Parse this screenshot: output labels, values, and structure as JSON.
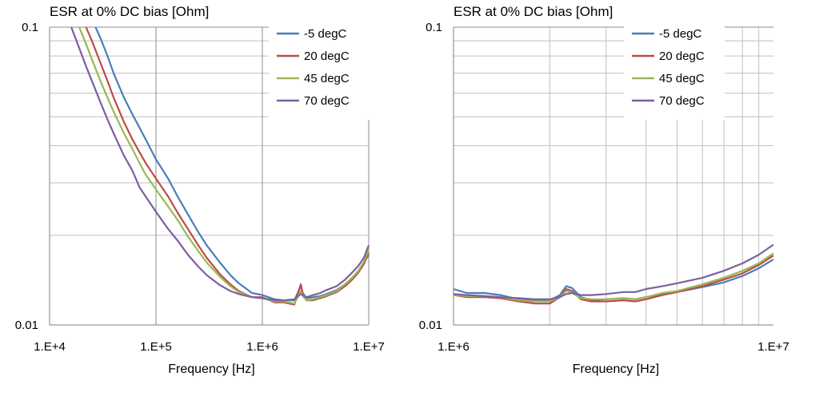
{
  "chart_data": [
    {
      "type": "line",
      "title": "ESR at 0% DC bias [Ohm]",
      "xlabel": "Frequency [Hz]",
      "ylabel": "",
      "xscale": "log",
      "yscale": "log",
      "xlim": [
        10000,
        10000000
      ],
      "ylim": [
        0.01,
        0.1
      ],
      "xticks": [
        10000,
        100000,
        1000000,
        10000000
      ],
      "xtick_labels": [
        "1.E+4",
        "1.E+5",
        "1.E+6",
        "1.E+7"
      ],
      "yticks": [
        0.01,
        0.1
      ],
      "ytick_labels": [
        "0.01",
        "0.1"
      ],
      "grid": true,
      "legend_position": "top-right",
      "series": [
        {
          "name": "-5 degC",
          "color": "#4a7ebb",
          "x": [
            27000,
            30000,
            35000,
            40000,
            50000,
            60000,
            70000,
            80000,
            100000,
            130000,
            160000,
            200000,
            250000,
            300000,
            400000,
            500000,
            600000,
            800000,
            1000000,
            1300000,
            1600000,
            2000000,
            2300000,
            2400000,
            2600000,
            3000000,
            3500000,
            4000000,
            5000000,
            6000000,
            7000000,
            8000000,
            9000000,
            10000000
          ],
          "y": [
            0.1,
            0.092,
            0.08,
            0.07,
            0.058,
            0.051,
            0.046,
            0.042,
            0.036,
            0.031,
            0.027,
            0.0235,
            0.0205,
            0.0185,
            0.0162,
            0.0147,
            0.0138,
            0.0128,
            0.0126,
            0.0122,
            0.0121,
            0.0121,
            0.0135,
            0.0128,
            0.0123,
            0.0124,
            0.0125,
            0.0127,
            0.0131,
            0.0137,
            0.0144,
            0.0152,
            0.0162,
            0.0172
          ]
        },
        {
          "name": "20 degC",
          "color": "#be4b48",
          "x": [
            22000,
            25000,
            30000,
            35000,
            40000,
            50000,
            60000,
            70000,
            80000,
            100000,
            130000,
            160000,
            200000,
            250000,
            300000,
            400000,
            500000,
            600000,
            800000,
            1000000,
            1300000,
            1600000,
            2000000,
            2300000,
            2400000,
            2600000,
            3000000,
            3500000,
            4000000,
            5000000,
            6000000,
            7000000,
            8000000,
            9000000,
            10000000
          ],
          "y": [
            0.1,
            0.09,
            0.076,
            0.066,
            0.058,
            0.048,
            0.042,
            0.038,
            0.035,
            0.031,
            0.027,
            0.0238,
            0.021,
            0.0185,
            0.0168,
            0.0148,
            0.0137,
            0.013,
            0.0124,
            0.0124,
            0.0119,
            0.0119,
            0.0117,
            0.0137,
            0.0127,
            0.0121,
            0.0121,
            0.0123,
            0.0125,
            0.0129,
            0.0135,
            0.0142,
            0.015,
            0.016,
            0.0175
          ]
        },
        {
          "name": "45 degC",
          "color": "#98b954",
          "x": [
            19000,
            22000,
            25000,
            30000,
            35000,
            40000,
            50000,
            60000,
            70000,
            80000,
            100000,
            130000,
            160000,
            200000,
            250000,
            300000,
            400000,
            500000,
            600000,
            800000,
            1000000,
            1300000,
            1600000,
            2000000,
            2300000,
            2400000,
            2600000,
            3000000,
            3500000,
            4000000,
            5000000,
            6000000,
            7000000,
            8000000,
            9000000,
            10000000
          ],
          "y": [
            0.1,
            0.088,
            0.078,
            0.066,
            0.058,
            0.052,
            0.044,
            0.039,
            0.035,
            0.032,
            0.0285,
            0.025,
            0.0225,
            0.0198,
            0.0177,
            0.0162,
            0.0145,
            0.0135,
            0.0129,
            0.0124,
            0.0123,
            0.012,
            0.012,
            0.0118,
            0.013,
            0.0125,
            0.0121,
            0.0122,
            0.0124,
            0.0126,
            0.013,
            0.0137,
            0.0144,
            0.0152,
            0.0163,
            0.0178
          ]
        },
        {
          "name": "70 degC",
          "color": "#7d5fa0",
          "x": [
            16000,
            19000,
            22000,
            25000,
            30000,
            35000,
            40000,
            50000,
            60000,
            70000,
            80000,
            100000,
            130000,
            160000,
            200000,
            250000,
            300000,
            400000,
            500000,
            600000,
            800000,
            1000000,
            1300000,
            1600000,
            2000000,
            2300000,
            2400000,
            2600000,
            3000000,
            3500000,
            4000000,
            5000000,
            6000000,
            7000000,
            8000000,
            9000000,
            10000000
          ],
          "y": [
            0.1,
            0.085,
            0.074,
            0.066,
            0.056,
            0.049,
            0.044,
            0.037,
            0.033,
            0.029,
            0.027,
            0.024,
            0.021,
            0.0192,
            0.0172,
            0.0157,
            0.0147,
            0.0136,
            0.013,
            0.0127,
            0.0124,
            0.0123,
            0.0121,
            0.0121,
            0.0122,
            0.0127,
            0.0126,
            0.0124,
            0.0126,
            0.0128,
            0.0131,
            0.0135,
            0.0142,
            0.015,
            0.0158,
            0.0168,
            0.0185
          ]
        }
      ]
    },
    {
      "type": "line",
      "title": "ESR at 0% DC bias [Ohm]",
      "xlabel": "Frequency [Hz]",
      "ylabel": "",
      "xscale": "log",
      "yscale": "log",
      "xlim": [
        1000000,
        10000000
      ],
      "ylim": [
        0.01,
        0.1
      ],
      "xticks": [
        1000000,
        10000000
      ],
      "xtick_labels": [
        "1.E+6",
        "1.E+7"
      ],
      "yticks": [
        0.01,
        0.1
      ],
      "ytick_labels": [
        "0.01",
        "0.1"
      ],
      "grid": true,
      "legend_position": "top-right",
      "series": [
        {
          "name": "-5 degC",
          "color": "#4a7ebb",
          "x": [
            1000000,
            1100000,
            1250000,
            1400000,
            1600000,
            1800000,
            2000000,
            2150000,
            2250000,
            2350000,
            2500000,
            2700000,
            3000000,
            3400000,
            3700000,
            4000000,
            4500000,
            5000000,
            6000000,
            7000000,
            8000000,
            9000000,
            10000000
          ],
          "y": [
            0.0132,
            0.0128,
            0.0128,
            0.0126,
            0.0122,
            0.0121,
            0.0121,
            0.0126,
            0.0135,
            0.0133,
            0.0124,
            0.0121,
            0.0122,
            0.0123,
            0.0122,
            0.0124,
            0.0127,
            0.0129,
            0.0134,
            0.0139,
            0.0146,
            0.0155,
            0.0166
          ]
        },
        {
          "name": "20 degC",
          "color": "#be4b48",
          "x": [
            1000000,
            1100000,
            1250000,
            1400000,
            1600000,
            1800000,
            2000000,
            2150000,
            2250000,
            2350000,
            2500000,
            2700000,
            3000000,
            3400000,
            3700000,
            4000000,
            4500000,
            5000000,
            6000000,
            7000000,
            8000000,
            9000000,
            10000000
          ],
          "y": [
            0.0126,
            0.0124,
            0.0124,
            0.0123,
            0.012,
            0.0118,
            0.0118,
            0.0124,
            0.0132,
            0.013,
            0.0122,
            0.012,
            0.012,
            0.0121,
            0.012,
            0.0122,
            0.0126,
            0.0129,
            0.0135,
            0.0142,
            0.0149,
            0.0159,
            0.0171
          ]
        },
        {
          "name": "45 degC",
          "color": "#98b954",
          "x": [
            1000000,
            1100000,
            1250000,
            1400000,
            1600000,
            1800000,
            2000000,
            2150000,
            2250000,
            2350000,
            2500000,
            2700000,
            3000000,
            3400000,
            3700000,
            4000000,
            4500000,
            5000000,
            6000000,
            7000000,
            8000000,
            9000000,
            10000000
          ],
          "y": [
            0.0126,
            0.0125,
            0.0125,
            0.0124,
            0.0121,
            0.012,
            0.012,
            0.0124,
            0.013,
            0.0128,
            0.0123,
            0.0122,
            0.0122,
            0.0123,
            0.0122,
            0.0124,
            0.0128,
            0.013,
            0.0137,
            0.0144,
            0.0152,
            0.0161,
            0.0174
          ]
        },
        {
          "name": "70 degC",
          "color": "#7d5fa0",
          "x": [
            1000000,
            1100000,
            1250000,
            1400000,
            1600000,
            1800000,
            2000000,
            2150000,
            2250000,
            2350000,
            2500000,
            2700000,
            3000000,
            3400000,
            3700000,
            4000000,
            4500000,
            5000000,
            6000000,
            7000000,
            8000000,
            9000000,
            10000000
          ],
          "y": [
            0.0127,
            0.0126,
            0.0125,
            0.0124,
            0.0123,
            0.0122,
            0.0122,
            0.0124,
            0.0127,
            0.0128,
            0.0126,
            0.0126,
            0.0127,
            0.0129,
            0.0129,
            0.0132,
            0.0135,
            0.0138,
            0.0144,
            0.0152,
            0.0161,
            0.0172,
            0.0186
          ]
        }
      ]
    }
  ]
}
